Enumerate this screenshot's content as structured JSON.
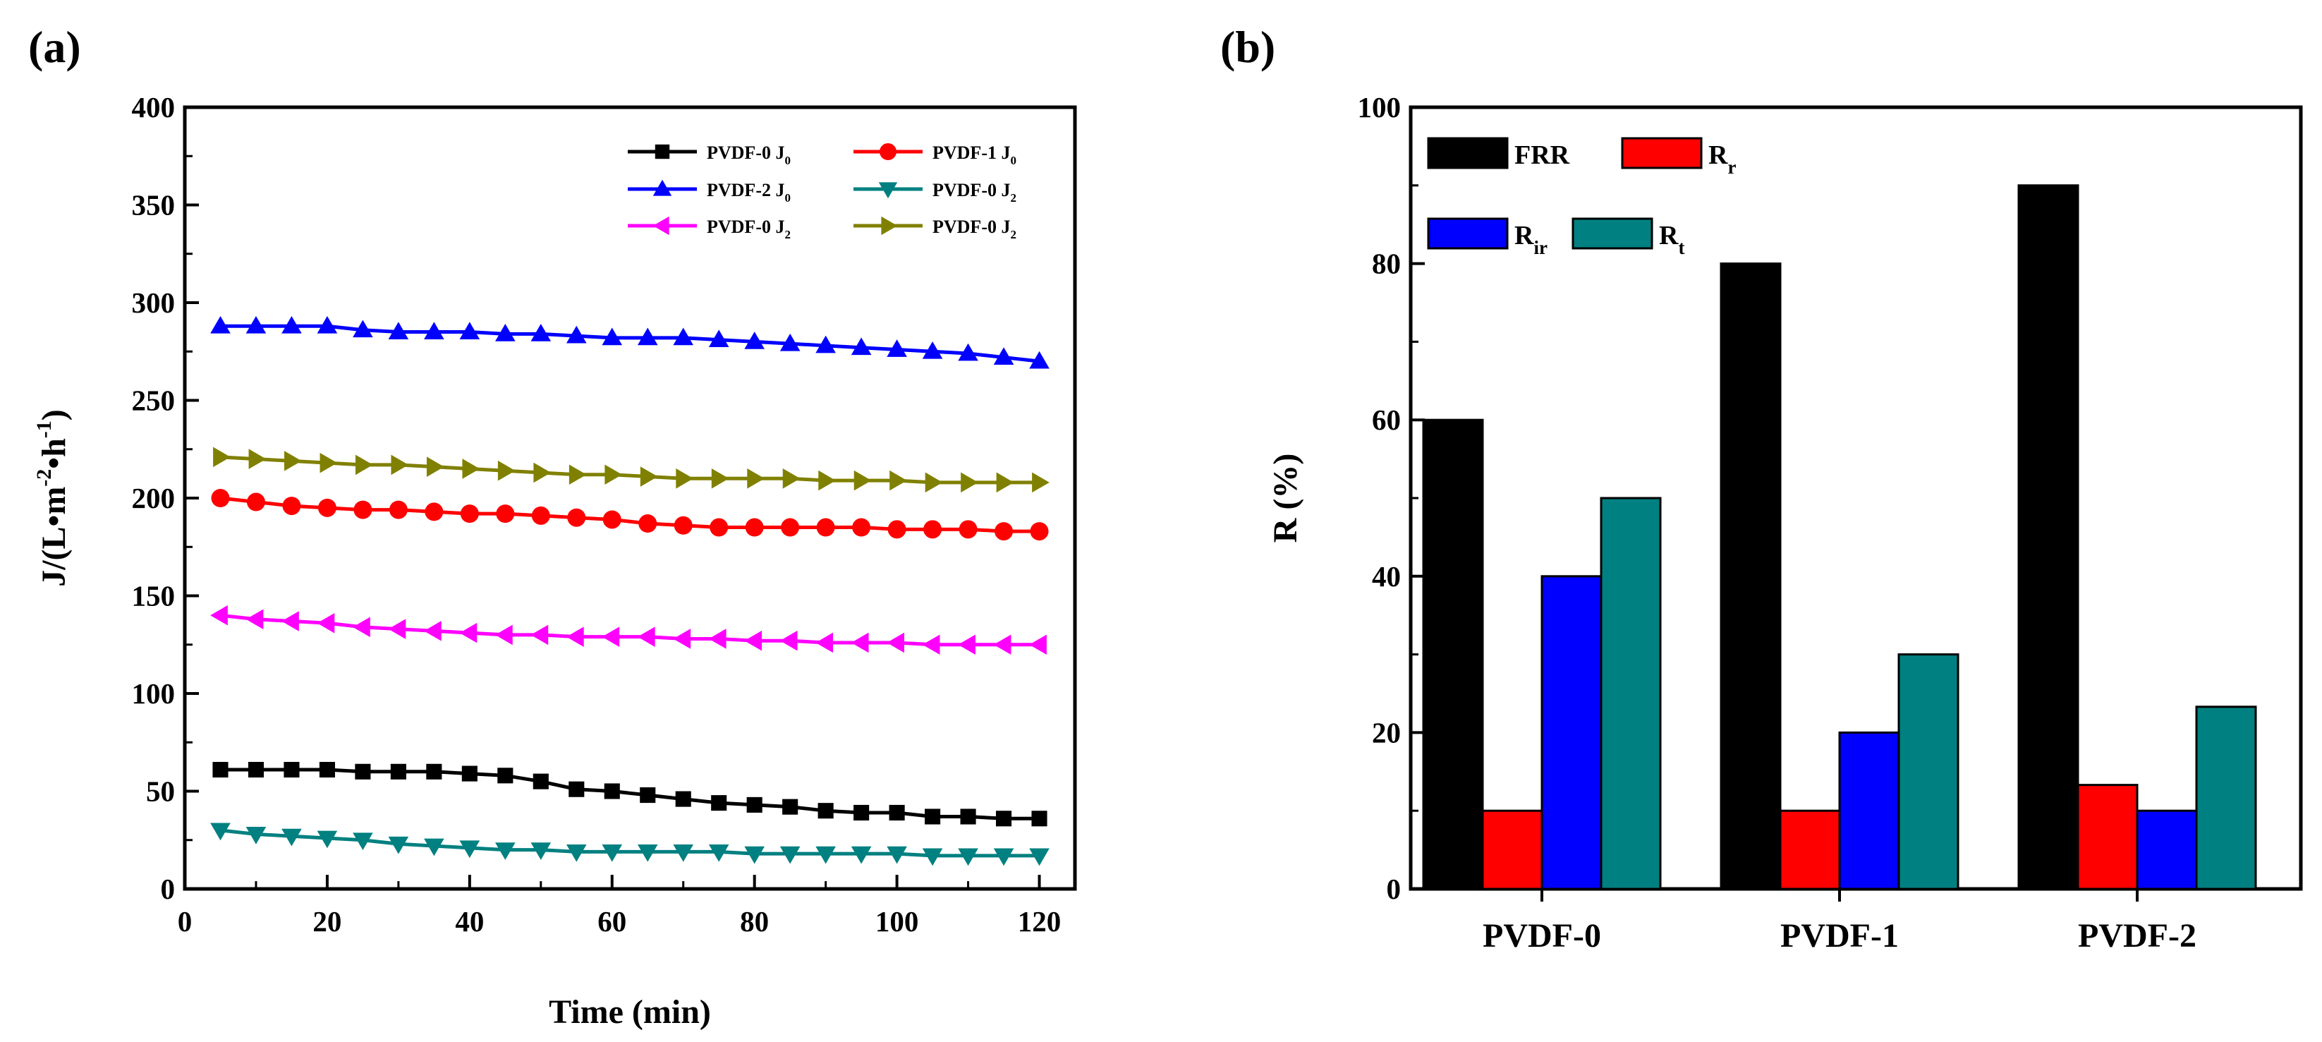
{
  "chart_data": [
    {
      "panel": "(a)",
      "type": "line",
      "xlabel": "Time (min)",
      "ylabel": "J/(L•m-2•h-1)",
      "ylabel_parts": [
        "J/(L•m",
        "-2",
        "•h",
        "-1",
        ")"
      ],
      "xlim": [
        0,
        125
      ],
      "ylim": [
        0,
        400
      ],
      "xticks": [
        0,
        20,
        40,
        60,
        80,
        100,
        120
      ],
      "yticks": [
        0,
        50,
        100,
        150,
        200,
        250,
        300,
        350,
        400
      ],
      "legend_position": "top-right",
      "x": [
        5,
        10,
        15,
        20,
        25,
        30,
        35,
        40,
        45,
        50,
        55,
        60,
        65,
        70,
        75,
        80,
        85,
        90,
        95,
        100,
        105,
        110,
        115,
        120
      ],
      "series": [
        {
          "name": "PVDF-0 J0",
          "base": "PVDF-0 J",
          "sub": "0",
          "color": "#000000",
          "marker": "square",
          "values": [
            61,
            61,
            61,
            61,
            60,
            60,
            60,
            59,
            58,
            55,
            51,
            50,
            48,
            46,
            44,
            43,
            42,
            40,
            39,
            39,
            37,
            37,
            36,
            36
          ]
        },
        {
          "name": "PVDF-1 J0",
          "base": "PVDF-1 J",
          "sub": "0",
          "color": "#ff0000",
          "marker": "circle",
          "values": [
            200,
            198,
            196,
            195,
            194,
            194,
            193,
            192,
            192,
            191,
            190,
            189,
            187,
            186,
            185,
            185,
            185,
            185,
            185,
            184,
            184,
            184,
            183,
            183
          ]
        },
        {
          "name": "PVDF-2 J0",
          "base": "PVDF-2 J",
          "sub": "0",
          "color": "#0000ff",
          "marker": "triangle-up",
          "values": [
            288,
            288,
            288,
            288,
            286,
            285,
            285,
            285,
            284,
            284,
            283,
            282,
            282,
            282,
            281,
            280,
            279,
            278,
            277,
            276,
            275,
            274,
            272,
            270
          ]
        },
        {
          "name": "PVDF-0 J2",
          "base": "PVDF-0 J",
          "sub": "2",
          "color": "#008080",
          "marker": "triangle-down",
          "values": [
            30,
            28,
            27,
            26,
            25,
            23,
            22,
            21,
            20,
            20,
            19,
            19,
            19,
            19,
            19,
            18,
            18,
            18,
            18,
            18,
            17,
            17,
            17,
            17
          ]
        },
        {
          "name": "PVDF-0 J2",
          "base": "PVDF-0 J",
          "sub": "2",
          "color": "#ff00ff",
          "marker": "triangle-left",
          "values": [
            140,
            138,
            137,
            136,
            134,
            133,
            132,
            131,
            130,
            130,
            129,
            129,
            129,
            128,
            128,
            127,
            127,
            126,
            126,
            126,
            125,
            125,
            125,
            125
          ]
        },
        {
          "name": "PVDF-0 J2",
          "base": "PVDF-0 J",
          "sub": "2",
          "color": "#808000",
          "marker": "triangle-right",
          "values": [
            221,
            220,
            219,
            218,
            217,
            217,
            216,
            215,
            214,
            213,
            212,
            212,
            211,
            210,
            210,
            210,
            210,
            209,
            209,
            209,
            208,
            208,
            208,
            208
          ]
        }
      ]
    },
    {
      "panel": "(b)",
      "type": "bar",
      "xlabel": "",
      "ylabel": "R (%)",
      "ylim": [
        0,
        100
      ],
      "yticks": [
        0,
        20,
        40,
        60,
        80,
        100
      ],
      "categories": [
        "PVDF-0",
        "PVDF-1",
        "PVDF-2"
      ],
      "legend_position": "top-left",
      "series": [
        {
          "name": "FRR",
          "base": "FRR",
          "sub": "",
          "color": "#000000",
          "values": [
            60,
            80,
            90
          ]
        },
        {
          "name": "Rr",
          "base": "R",
          "sub": "r",
          "color": "#ff0000",
          "values": [
            10,
            10,
            13.3
          ]
        },
        {
          "name": "Rir",
          "base": "R",
          "sub": "ir",
          "color": "#0000ff",
          "values": [
            40,
            20,
            10
          ]
        },
        {
          "name": "Rt",
          "base": "R",
          "sub": "t",
          "color": "#008080",
          "values": [
            50,
            30,
            23.3
          ]
        }
      ]
    }
  ]
}
